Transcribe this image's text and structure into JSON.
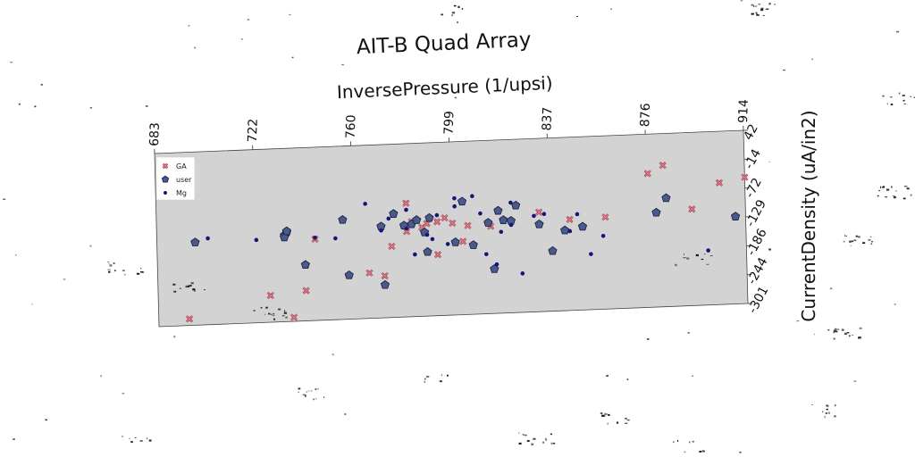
{
  "chart_data": {
    "type": "scatter",
    "title": "AIT-B Quad Array",
    "xlabel": "InversePressure (1/upsi)",
    "ylabel": "CurrentDensity (uA/in2)",
    "x_ticks": [
      "683",
      "722",
      "760",
      "799",
      "837",
      "876",
      "914"
    ],
    "y_ticks": [
      "42",
      "-14",
      "-72",
      "-129",
      "-186",
      "-244",
      "-301"
    ],
    "xlim": [
      683,
      914
    ],
    "ylim": [
      -301,
      42
    ],
    "legend_position": "top-left",
    "series": [
      {
        "name": "GA",
        "marker": "x",
        "color": "#d48a96",
        "points": [
          [
            695,
            -288
          ],
          [
            727,
            -248
          ],
          [
            736,
            -293
          ],
          [
            741,
            -241
          ],
          [
            745,
            -140
          ],
          [
            766,
            -211
          ],
          [
            775,
            -160
          ],
          [
            772,
            -218
          ],
          [
            781,
            -76
          ],
          [
            781,
            -132
          ],
          [
            783,
            -113
          ],
          [
            787,
            -125
          ],
          [
            789,
            -118
          ],
          [
            793,
            -180
          ],
          [
            793,
            -115
          ],
          [
            796,
            -108
          ],
          [
            799,
            -119
          ],
          [
            803,
            -156
          ],
          [
            805,
            -125
          ],
          [
            814,
            -128
          ],
          [
            833,
            -104
          ],
          [
            845,
            -121
          ],
          [
            859,
            -119
          ],
          [
            876,
            -36
          ],
          [
            882,
            -21
          ],
          [
            893,
            -110
          ],
          [
            904,
            -60
          ],
          [
            914,
            -51
          ]
        ]
      },
      {
        "name": "user",
        "marker": "pentagon",
        "color": "#4a5a8a",
        "points": [
          [
            698,
            -137
          ],
          [
            733,
            -130
          ],
          [
            734,
            -124
          ],
          [
            733,
            -134
          ],
          [
            734,
            -122
          ],
          [
            741,
            -190
          ],
          [
            756,
            -104
          ],
          [
            758,
            -214
          ],
          [
            771,
            -120
          ],
          [
            772,
            -236
          ],
          [
            776,
            -96
          ],
          [
            780,
            -120
          ],
          [
            783,
            -118
          ],
          [
            785,
            -110
          ],
          [
            788,
            -135
          ],
          [
            789,
            -174
          ],
          [
            790,
            -107
          ],
          [
            800,
            -157
          ],
          [
            803,
            -77
          ],
          [
            807,
            -164
          ],
          [
            813,
            -121
          ],
          [
            815,
            -213
          ],
          [
            817,
            -98
          ],
          [
            819,
            -117
          ],
          [
            822,
            -119
          ],
          [
            824,
            -89
          ],
          [
            833,
            -128
          ],
          [
            838,
            -182
          ],
          [
            843,
            -142
          ],
          [
            850,
            -136
          ],
          [
            879,
            -114
          ],
          [
            883,
            -86
          ],
          [
            910,
            -128
          ]
        ]
      },
      {
        "name": "Mg",
        "marker": "dot",
        "color": "#15157a",
        "points": [
          [
            703,
            -130
          ],
          [
            722,
            -137
          ],
          [
            745,
            -137
          ],
          [
            753,
            -140
          ],
          [
            765,
            -74
          ],
          [
            771,
            -128
          ],
          [
            774,
            -105
          ],
          [
            781,
            -89
          ],
          [
            781,
            -126
          ],
          [
            784,
            -178
          ],
          [
            789,
            -140
          ],
          [
            791,
            -149
          ],
          [
            793,
            -102
          ],
          [
            797,
            -160
          ],
          [
            800,
            -86
          ],
          [
            800,
            -70
          ],
          [
            807,
            -67
          ],
          [
            810,
            -102
          ],
          [
            812,
            -183
          ],
          [
            816,
            -204
          ],
          [
            818,
            -140
          ],
          [
            822,
            -83
          ],
          [
            822,
            -127
          ],
          [
            826,
            -224
          ],
          [
            831,
            -111
          ],
          [
            835,
            -108
          ],
          [
            845,
            -144
          ],
          [
            848,
            -111
          ],
          [
            853,
            -191
          ],
          [
            858,
            -156
          ],
          [
            899,
            -193
          ]
        ]
      }
    ]
  }
}
